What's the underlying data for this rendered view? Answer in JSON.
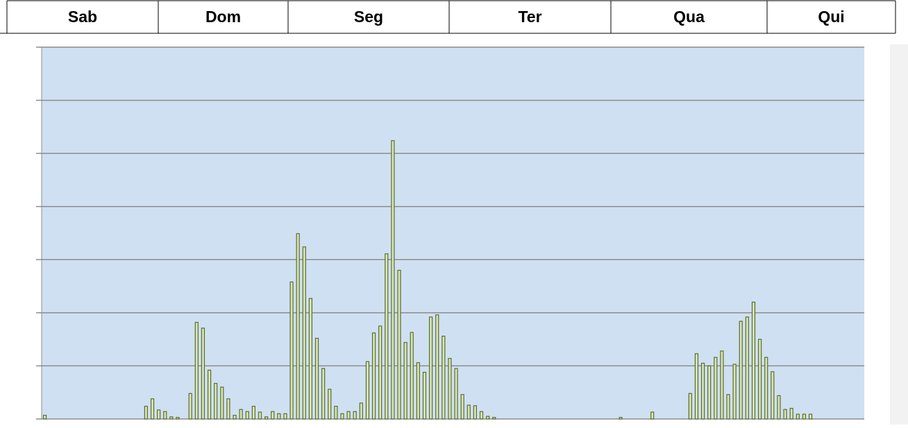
{
  "header": {
    "days": [
      "Sab",
      "Dom",
      "Seg",
      "Ter",
      "Qua",
      "Qui"
    ]
  },
  "chart_data": {
    "type": "bar",
    "color": "#d8e4bc",
    "edge_color": "#5a6e28",
    "grid": true,
    "ylim": [
      0,
      7
    ],
    "yticks": [
      0,
      1,
      2,
      3,
      4,
      5,
      6,
      7
    ],
    "values": [
      0.07,
      0,
      0,
      0,
      0,
      0,
      0,
      0,
      0,
      0,
      0,
      0,
      0,
      0,
      0,
      0,
      0.24,
      0.38,
      0.17,
      0.14,
      0.04,
      0.03,
      0,
      0.48,
      1.82,
      1.71,
      0.92,
      0.67,
      0.6,
      0.38,
      0.07,
      0.18,
      0.14,
      0.24,
      0.13,
      0.04,
      0.14,
      0.1,
      0.1,
      2.58,
      3.49,
      3.24,
      2.27,
      1.52,
      0.95,
      0.56,
      0.24,
      0.1,
      0.14,
      0.14,
      0.3,
      1.08,
      1.62,
      1.75,
      3.11,
      5.24,
      2.8,
      1.44,
      1.63,
      1.06,
      0.88,
      1.92,
      1.96,
      1.56,
      1.14,
      0.95,
      0.46,
      0.26,
      0.25,
      0.14,
      0.05,
      0.03,
      0,
      0,
      0,
      0,
      0,
      0,
      0,
      0,
      0,
      0,
      0,
      0,
      0,
      0,
      0,
      0,
      0,
      0,
      0,
      0.03,
      0,
      0,
      0,
      0,
      0.13,
      0,
      0,
      0,
      0,
      0,
      0.48,
      1.23,
      1.05,
      1.0,
      1.16,
      1.28,
      0.46,
      1.03,
      1.84,
      1.92,
      2.2,
      1.5,
      1.16,
      0.89,
      0.44,
      0.18,
      0.2,
      0.09,
      0.09,
      0.09,
      0,
      0,
      0,
      0,
      0,
      0,
      0,
      0
    ]
  }
}
